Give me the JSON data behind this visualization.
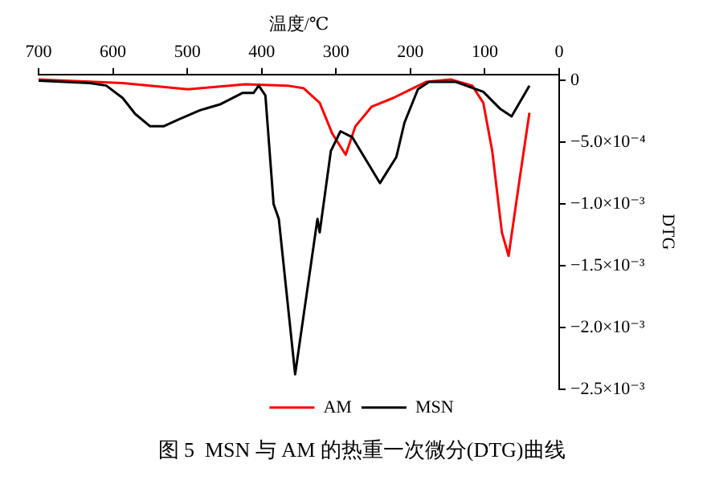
{
  "chart_data": {
    "type": "line",
    "title": "图 5  MSN 与 AM 的热重一次微分(DTG)曲线",
    "xlabel": "温度/℃",
    "ylabel": "DTG",
    "series": [
      {
        "name": "MSN",
        "color": "#000000",
        "x": [
          40,
          64,
          79,
          102,
          139,
          175,
          190,
          208,
          219,
          241,
          256,
          278,
          294,
          307,
          322,
          325,
          355,
          377,
          384,
          395,
          404,
          411,
          426,
          455,
          483,
          510,
          532,
          550,
          570,
          587,
          609,
          631,
          700
        ],
        "values": [
          -4e-05,
          -0.00029,
          -0.00023,
          -9e-05,
          -1e-05,
          -1e-05,
          -7e-05,
          -0.00034,
          -0.00062,
          -0.00083,
          -0.00068,
          -0.00046,
          -0.00041,
          -0.00057,
          -0.00123,
          -0.00112,
          -0.00238,
          -0.00112,
          -0.001,
          -0.00012,
          -4e-05,
          -0.0001,
          -0.0001,
          -0.00019,
          -0.00024,
          -0.00031,
          -0.00037,
          -0.00037,
          -0.00027,
          -0.00014,
          -4e-05,
          -2e-05,
          0
        ]
      },
      {
        "name": "AM",
        "color": "#ff0000",
        "x": [
          40,
          53,
          68,
          77,
          90,
          102,
          117,
          146,
          179,
          223,
          252,
          274,
          287,
          305,
          322,
          344,
          366,
          422,
          499,
          587,
          700
        ],
        "values": [
          -0.00026,
          -0.00079,
          -0.00142,
          -0.00123,
          -0.00057,
          -0.00018,
          -4e-05,
          1e-05,
          -1e-05,
          -0.00014,
          -0.00021,
          -0.00037,
          -0.0006,
          -0.00043,
          -0.00018,
          -6e-05,
          -4e-05,
          -3e-05,
          -7e-05,
          -2e-05,
          1e-05
        ]
      }
    ],
    "xlim": [
      700,
      0
    ],
    "xticks": [
      0,
      100,
      200,
      300,
      400,
      500,
      600,
      700
    ],
    "ylim": [
      -0.0025,
      5e-05
    ],
    "yticks": [
      {
        "value": 0,
        "label": "0"
      },
      {
        "value": -0.0005,
        "label": "−5.0×10⁻⁴"
      },
      {
        "value": -0.001,
        "label": "−1.0×10⁻³"
      },
      {
        "value": -0.0015,
        "label": "−1.5×10⁻³"
      },
      {
        "value": -0.002,
        "label": "−2.0×10⁻³"
      },
      {
        "value": -0.0025,
        "label": "−2.5×10⁻³"
      }
    ],
    "grid": false,
    "legend": "bottom",
    "marker": "none",
    "line_style": "solid"
  }
}
